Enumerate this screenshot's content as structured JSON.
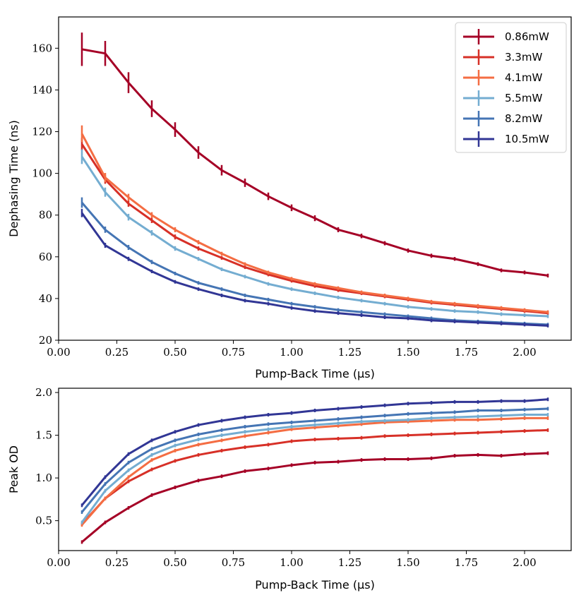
{
  "chart_data": [
    {
      "type": "line",
      "xlabel": "Pump-Back Time (μs)",
      "ylabel": "Dephasing Time (ns)",
      "xlim": [
        0.0,
        2.2
      ],
      "ylim": [
        20,
        175
      ],
      "xticks": [
        0.0,
        0.25,
        0.5,
        0.75,
        1.0,
        1.25,
        1.5,
        1.75,
        2.0
      ],
      "xtick_labels": [
        "0.00",
        "0.25",
        "0.50",
        "0.75",
        "1.00",
        "1.25",
        "1.50",
        "1.75",
        "2.00"
      ],
      "yticks": [
        20,
        40,
        60,
        80,
        100,
        120,
        140,
        160
      ],
      "ytick_labels": [
        "20",
        "40",
        "60",
        "80",
        "100",
        "120",
        "140",
        "160"
      ],
      "legend_position": "top-right",
      "x": [
        0.1,
        0.2,
        0.3,
        0.4,
        0.5,
        0.6,
        0.7,
        0.8,
        0.9,
        1.0,
        1.1,
        1.2,
        1.3,
        1.4,
        1.5,
        1.6,
        1.7,
        1.8,
        1.9,
        2.0,
        2.1
      ],
      "series": [
        {
          "name": "0.86mW",
          "color": "#a50026",
          "values": [
            159.5,
            157.5,
            143.5,
            131,
            121,
            110,
            101.5,
            95.5,
            89,
            83.5,
            78.5,
            73,
            70,
            66.5,
            63,
            60.5,
            59,
            56.5,
            53.5,
            52.5,
            51
          ],
          "errors": [
            8,
            6,
            5,
            4,
            3.5,
            3,
            2.5,
            2,
            1.8,
            1.6,
            1.4,
            1.2,
            1.1,
            1,
            1,
            1,
            0.9,
            0.9,
            0.9,
            0.9,
            0.9
          ]
        },
        {
          "name": "3.3mW",
          "color": "#d73027",
          "values": [
            114,
            97,
            85.5,
            77.5,
            69.5,
            64,
            59.5,
            55,
            51.5,
            48.5,
            46,
            44,
            42.5,
            41,
            39.5,
            38,
            37,
            36,
            35,
            34,
            33
          ],
          "errors": [
            3,
            2,
            1.5,
            1.3,
            1.2,
            1,
            0.9,
            0.8,
            0.7,
            0.6,
            0.6,
            0.6,
            0.5,
            0.5,
            0.5,
            0.5,
            0.5,
            0.5,
            0.5,
            0.5,
            0.5
          ]
        },
        {
          "name": "4.1mW",
          "color": "#f46d43",
          "values": [
            119,
            98,
            88.5,
            80,
            73,
            67,
            61.5,
            56.5,
            52.5,
            49.5,
            47,
            45,
            43,
            41.5,
            40,
            38.5,
            37.5,
            36.5,
            35.5,
            34.5,
            33.5
          ],
          "errors": [
            4,
            2.2,
            1.7,
            1.4,
            1.2,
            1,
            0.9,
            0.8,
            0.7,
            0.6,
            0.6,
            0.6,
            0.5,
            0.5,
            0.5,
            0.5,
            0.5,
            0.5,
            0.5,
            0.5,
            0.5
          ]
        },
        {
          "name": "5.5mW",
          "color": "#74add1",
          "values": [
            108,
            91,
            79,
            71.5,
            64,
            59,
            54,
            50.5,
            47,
            44.5,
            42.5,
            40.5,
            39,
            37.5,
            36,
            35,
            34,
            33.5,
            32.5,
            32,
            31.5
          ],
          "errors": [
            3.5,
            2.2,
            1.6,
            1.3,
            1.1,
            0.9,
            0.8,
            0.7,
            0.6,
            0.6,
            0.5,
            0.5,
            0.5,
            0.5,
            0.5,
            0.5,
            0.5,
            0.5,
            0.5,
            0.5,
            0.5
          ]
        },
        {
          "name": "8.2mW",
          "color": "#4575b4",
          "values": [
            86,
            73,
            64.5,
            57.5,
            52,
            47.5,
            44.5,
            41.5,
            39.5,
            37.5,
            36,
            34.5,
            33.5,
            32.5,
            31.5,
            30.5,
            29.5,
            29,
            28.5,
            28,
            27.5
          ],
          "errors": [
            2.5,
            1.5,
            1.2,
            1,
            0.8,
            0.7,
            0.6,
            0.5,
            0.5,
            0.5,
            0.4,
            0.4,
            0.4,
            0.4,
            0.4,
            0.4,
            0.4,
            0.4,
            0.4,
            0.4,
            0.4
          ]
        },
        {
          "name": "10.5mW",
          "color": "#313695",
          "values": [
            81,
            65.5,
            59,
            53,
            48,
            44.5,
            41.5,
            39,
            37.5,
            35.5,
            34,
            33,
            32,
            31,
            30.5,
            29.5,
            29,
            28.5,
            28,
            27.5,
            27
          ],
          "errors": [
            2,
            1.2,
            1,
            0.8,
            0.7,
            0.6,
            0.5,
            0.5,
            0.4,
            0.4,
            0.4,
            0.4,
            0.4,
            0.4,
            0.4,
            0.4,
            0.4,
            0.4,
            0.4,
            0.4,
            0.4
          ]
        }
      ]
    },
    {
      "type": "line",
      "xlabel": "Pump-Back Time (μs)",
      "ylabel": "Peak OD",
      "xlim": [
        0.0,
        2.2
      ],
      "ylim": [
        0.15,
        2.05
      ],
      "xticks": [
        0.0,
        0.25,
        0.5,
        0.75,
        1.0,
        1.25,
        1.5,
        1.75,
        2.0
      ],
      "xtick_labels": [
        "0.00",
        "0.25",
        "0.50",
        "0.75",
        "1.00",
        "1.25",
        "1.50",
        "1.75",
        "2.00"
      ],
      "yticks": [
        0.5,
        1.0,
        1.5,
        2.0
      ],
      "ytick_labels": [
        "0.5",
        "1.0",
        "1.5",
        "2.0"
      ],
      "x": [
        0.1,
        0.2,
        0.3,
        0.4,
        0.5,
        0.6,
        0.7,
        0.8,
        0.9,
        1.0,
        1.1,
        1.2,
        1.3,
        1.4,
        1.5,
        1.6,
        1.7,
        1.8,
        1.9,
        2.0,
        2.1
      ],
      "series": [
        {
          "name": "0.86mW",
          "color": "#a50026",
          "values": [
            0.25,
            0.48,
            0.65,
            0.8,
            0.89,
            0.97,
            1.02,
            1.08,
            1.11,
            1.15,
            1.18,
            1.19,
            1.21,
            1.22,
            1.22,
            1.23,
            1.26,
            1.27,
            1.26,
            1.28,
            1.29
          ],
          "errors": [
            0.015,
            0.015,
            0.015,
            0.015,
            0.015,
            0.015,
            0.015,
            0.015,
            0.015,
            0.015,
            0.015,
            0.015,
            0.015,
            0.015,
            0.015,
            0.015,
            0.015,
            0.015,
            0.015,
            0.015,
            0.015
          ]
        },
        {
          "name": "3.3mW",
          "color": "#d73027",
          "values": [
            0.46,
            0.76,
            0.96,
            1.1,
            1.2,
            1.27,
            1.32,
            1.36,
            1.39,
            1.43,
            1.45,
            1.46,
            1.47,
            1.49,
            1.5,
            1.51,
            1.52,
            1.53,
            1.54,
            1.55,
            1.56
          ],
          "errors": [
            0.015,
            0.015,
            0.015,
            0.015,
            0.015,
            0.015,
            0.015,
            0.015,
            0.015,
            0.015,
            0.015,
            0.015,
            0.015,
            0.015,
            0.015,
            0.015,
            0.015,
            0.015,
            0.015,
            0.015,
            0.015
          ]
        },
        {
          "name": "4.1mW",
          "color": "#f46d43",
          "values": [
            0.45,
            0.76,
            1.01,
            1.21,
            1.32,
            1.39,
            1.44,
            1.49,
            1.53,
            1.57,
            1.59,
            1.61,
            1.63,
            1.65,
            1.66,
            1.67,
            1.68,
            1.68,
            1.69,
            1.7,
            1.7
          ],
          "errors": [
            0.015,
            0.015,
            0.015,
            0.015,
            0.015,
            0.015,
            0.015,
            0.015,
            0.015,
            0.015,
            0.015,
            0.015,
            0.015,
            0.015,
            0.015,
            0.015,
            0.015,
            0.015,
            0.015,
            0.015,
            0.015
          ]
        },
        {
          "name": "5.5mW",
          "color": "#74add1",
          "values": [
            0.48,
            0.85,
            1.09,
            1.27,
            1.38,
            1.45,
            1.5,
            1.54,
            1.57,
            1.6,
            1.62,
            1.64,
            1.66,
            1.67,
            1.68,
            1.7,
            1.71,
            1.72,
            1.73,
            1.74,
            1.74
          ],
          "errors": [
            0.015,
            0.015,
            0.015,
            0.015,
            0.015,
            0.015,
            0.015,
            0.015,
            0.015,
            0.015,
            0.015,
            0.015,
            0.015,
            0.015,
            0.015,
            0.015,
            0.015,
            0.015,
            0.015,
            0.015,
            0.015
          ]
        },
        {
          "name": "8.2mW",
          "color": "#4575b4",
          "values": [
            0.6,
            0.93,
            1.18,
            1.34,
            1.44,
            1.51,
            1.56,
            1.6,
            1.63,
            1.65,
            1.67,
            1.69,
            1.71,
            1.73,
            1.75,
            1.76,
            1.77,
            1.79,
            1.79,
            1.8,
            1.81
          ],
          "errors": [
            0.015,
            0.015,
            0.015,
            0.015,
            0.015,
            0.015,
            0.015,
            0.015,
            0.015,
            0.015,
            0.015,
            0.015,
            0.015,
            0.015,
            0.015,
            0.015,
            0.015,
            0.015,
            0.015,
            0.015,
            0.015
          ]
        },
        {
          "name": "10.5mW",
          "color": "#313695",
          "values": [
            0.68,
            1.01,
            1.28,
            1.44,
            1.54,
            1.62,
            1.67,
            1.71,
            1.74,
            1.76,
            1.79,
            1.81,
            1.83,
            1.85,
            1.87,
            1.88,
            1.89,
            1.89,
            1.9,
            1.9,
            1.92
          ],
          "errors": [
            0.015,
            0.015,
            0.015,
            0.015,
            0.015,
            0.015,
            0.015,
            0.015,
            0.015,
            0.015,
            0.015,
            0.015,
            0.015,
            0.015,
            0.015,
            0.015,
            0.015,
            0.015,
            0.015,
            0.015,
            0.015
          ]
        }
      ]
    }
  ]
}
